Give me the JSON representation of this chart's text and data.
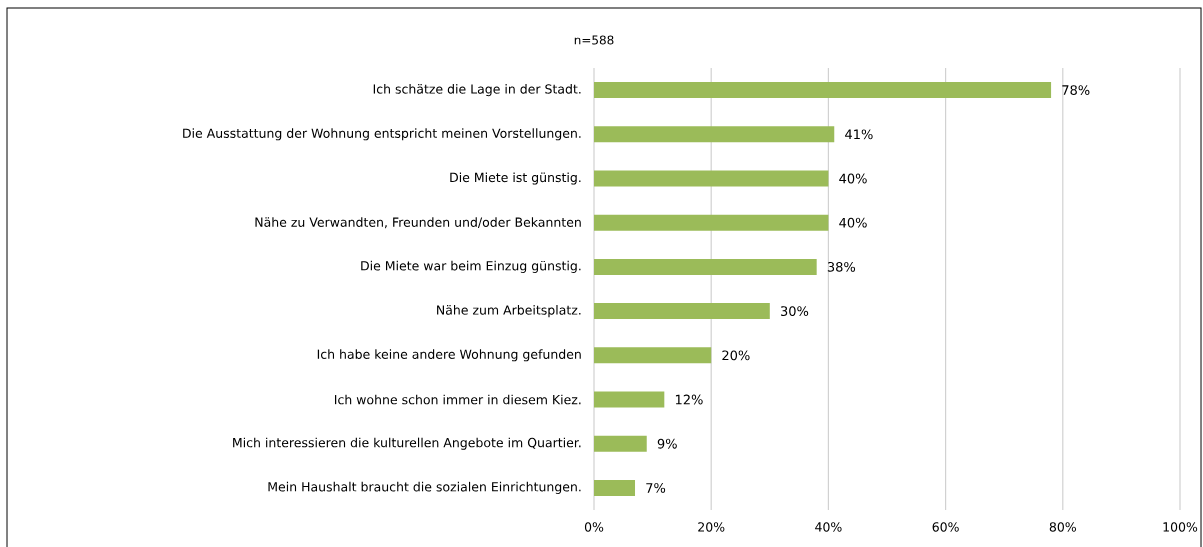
{
  "chart_data": {
    "type": "bar",
    "orientation": "horizontal",
    "title": "n=588",
    "categories": [
      "Ich schätze die Lage in der Stadt.",
      "Die Ausstattung der Wohnung entspricht meinen Vorstellungen.",
      "Die Miete ist günstig.",
      "Nähe zu Verwandten, Freunden und/oder Bekannten",
      "Die Miete war beim Einzug günstig.",
      "Nähe zum Arbeitsplatz.",
      "Ich habe keine andere Wohnung gefunden",
      "Ich wohne schon immer in diesem Kiez.",
      "Mich interessieren die kulturellen Angebote im Quartier.",
      "Mein Haushalt braucht die sozialen Einrichtungen."
    ],
    "values": [
      78,
      41,
      40,
      40,
      38,
      30,
      20,
      12,
      9,
      7
    ],
    "value_labels": [
      "78%",
      "41%",
      "40%",
      "40%",
      "38%",
      "30%",
      "20%",
      "12%",
      "9%",
      "7%"
    ],
    "color": "#9bbb59",
    "xlim": [
      0,
      100
    ],
    "xticks": [
      {
        "value": 0,
        "label": "0%"
      },
      {
        "value": 20,
        "label": "20%"
      },
      {
        "value": 40,
        "label": "40%"
      },
      {
        "value": 60,
        "label": "60%"
      },
      {
        "value": 80,
        "label": "80%"
      },
      {
        "value": 100,
        "label": "100%"
      }
    ],
    "grid": "x"
  }
}
